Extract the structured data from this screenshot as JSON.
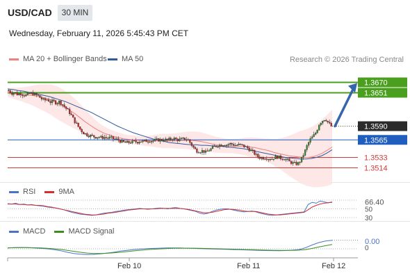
{
  "header": {
    "symbol": "USD/CAD",
    "timeframe": "30 MIN",
    "datetime": "Wednesday, February 11, 2026 5:45:43 PM CET"
  },
  "legend": {
    "ma20_label": "MA 20 + Bollinger Bands",
    "ma50_label": "MA 50",
    "copyright": "Research © 2026 Trading Central",
    "colors": {
      "ma20": "#f08080",
      "ma50": "#2e5a9e",
      "band_fill": "#fde3e3"
    }
  },
  "chart_data": [
    {
      "type": "candlestick",
      "title": "",
      "ylim": [
        1.3493,
        1.3696
      ],
      "x_ticks": [
        "Feb 10",
        "Feb 11",
        "Feb 12"
      ],
      "current_price": "1.3590",
      "levels": [
        {
          "value": 1.367,
          "label": "1.3670",
          "kind": "resistance",
          "color": "#4aa01e"
        },
        {
          "value": 1.3651,
          "label": "1.3651",
          "kind": "resistance",
          "color": "#4aa01e"
        },
        {
          "value": 1.3565,
          "label": "1.3565",
          "kind": "pivot",
          "color": "#1f5dbf"
        },
        {
          "value": 1.3533,
          "label": "1.3533",
          "kind": "support",
          "color": "#d23a3a"
        },
        {
          "value": 1.3514,
          "label": "1.3514",
          "kind": "support",
          "color": "#d23a3a"
        }
      ],
      "arrow": {
        "from": 1.359,
        "to": 1.367,
        "color": "#3566ad"
      },
      "close_path": [
        1.3655,
        1.365,
        1.3652,
        1.3648,
        1.365,
        1.3647,
        1.3646,
        1.3649,
        1.365,
        1.3647,
        1.3645,
        1.364,
        1.3637,
        1.3639,
        1.3634,
        1.3636,
        1.3632,
        1.3635,
        1.363,
        1.3624,
        1.3618,
        1.361,
        1.36,
        1.3592,
        1.3584,
        1.3578,
        1.3575,
        1.3573,
        1.3572,
        1.357,
        1.3571,
        1.3569,
        1.357,
        1.3568,
        1.3569,
        1.3567,
        1.3566,
        1.3564,
        1.3561,
        1.356,
        1.356,
        1.3561,
        1.3562,
        1.3561,
        1.3563,
        1.3562,
        1.3563,
        1.3564,
        1.3563,
        1.3564,
        1.3565,
        1.3565,
        1.3566,
        1.3564,
        1.3566,
        1.3568,
        1.3566,
        1.3565,
        1.3566,
        1.3567,
        1.3566,
        1.3558,
        1.355,
        1.3545,
        1.3544,
        1.3545,
        1.3542,
        1.3546,
        1.3549,
        1.3553,
        1.3555,
        1.3556,
        1.3557,
        1.3556,
        1.3558,
        1.3557,
        1.3555,
        1.3556,
        1.3555,
        1.3553,
        1.355,
        1.3546,
        1.3542,
        1.3536,
        1.3533,
        1.3532,
        1.3533,
        1.3531,
        1.353,
        1.3533,
        1.3534,
        1.3532,
        1.3531,
        1.3529,
        1.3525,
        1.3523,
        1.3521,
        1.3522,
        1.353,
        1.3542,
        1.3556,
        1.3566,
        1.3572,
        1.358,
        1.3595,
        1.36,
        1.3604,
        1.3596,
        1.359
      ],
      "ma20": [
        1.3652,
        1.365,
        1.3649,
        1.3648,
        1.3647,
        1.3646,
        1.3645,
        1.3643,
        1.3641,
        1.3638,
        1.3634,
        1.3629,
        1.3624,
        1.3618,
        1.3612,
        1.3605,
        1.3598,
        1.3592,
        1.3586,
        1.3581,
        1.3577,
        1.3574,
        1.3571,
        1.3569,
        1.3567,
        1.3566,
        1.3565,
        1.3564,
        1.3563,
        1.3563,
        1.3563,
        1.3563,
        1.3563,
        1.3563,
        1.3563,
        1.3563,
        1.3564,
        1.3564,
        1.3564,
        1.3563,
        1.3562,
        1.356,
        1.3558,
        1.3556,
        1.3555,
        1.3554,
        1.3554,
        1.3553,
        1.3553,
        1.3553,
        1.3552,
        1.3551,
        1.3549,
        1.3547,
        1.3545,
        1.3542,
        1.354,
        1.3538,
        1.3536,
        1.3535,
        1.3534,
        1.3533,
        1.3533,
        1.3534,
        1.3537,
        1.3541,
        1.3546,
        1.3552
      ],
      "ma50": [
        1.3658,
        1.3657,
        1.3655,
        1.3654,
        1.3652,
        1.365,
        1.3648,
        1.3646,
        1.3644,
        1.3641,
        1.3638,
        1.3635,
        1.3631,
        1.3627,
        1.3623,
        1.3619,
        1.3615,
        1.361,
        1.3605,
        1.36,
        1.3595,
        1.359,
        1.3586,
        1.3582,
        1.3578,
        1.3575,
        1.3572,
        1.3569,
        1.3566,
        1.3564,
        1.3562,
        1.356,
        1.3559,
        1.3558,
        1.3557,
        1.3556,
        1.3556,
        1.3555,
        1.3555,
        1.3554,
        1.3554,
        1.3553,
        1.3552,
        1.3551,
        1.355,
        1.3549,
        1.3547,
        1.3545,
        1.3543,
        1.3541,
        1.3539,
        1.3537,
        1.3535,
        1.3533,
        1.3532,
        1.3531,
        1.353,
        1.353,
        1.3531,
        1.3533,
        1.3536,
        1.3541,
        1.3547
      ],
      "band_width": [
        0.0008,
        0.001,
        0.0012,
        0.0015,
        0.0018,
        0.0022,
        0.0025,
        0.0028,
        0.003,
        0.003,
        0.0029,
        0.0027,
        0.0024,
        0.002,
        0.0016,
        0.0013,
        0.0011,
        0.001,
        0.0009,
        0.0008,
        0.0008,
        0.0008,
        0.0009,
        0.001,
        0.0012,
        0.0013,
        0.0013,
        0.0014,
        0.0015,
        0.0016,
        0.0017,
        0.0017,
        0.0016,
        0.0015,
        0.0014,
        0.0013,
        0.0013,
        0.0014,
        0.0016,
        0.0018,
        0.0019,
        0.002,
        0.0022,
        0.0025,
        0.003,
        0.0036,
        0.0042,
        0.0048,
        0.0052,
        0.0056,
        0.006,
        0.0064,
        0.0068
      ]
    },
    {
      "type": "line",
      "legend": [
        "RSI",
        "9MA"
      ],
      "colors": [
        "#4a72c9",
        "#d32f2f"
      ],
      "ylim": [
        30,
        70
      ],
      "tick_labels": [
        "66.40",
        "50",
        "30"
      ],
      "rsi": [
        62,
        61,
        63,
        60,
        61,
        59,
        60,
        58,
        57,
        56,
        54,
        53,
        52,
        50,
        48,
        45,
        42,
        40,
        38,
        37,
        36,
        35,
        36,
        38,
        40,
        41,
        42,
        44,
        45,
        47,
        48,
        49,
        50,
        51,
        50,
        49,
        50,
        51,
        52,
        51,
        50,
        52,
        53,
        51,
        50,
        48,
        46,
        44,
        40,
        38,
        40,
        44,
        47,
        49,
        50,
        50,
        48,
        46,
        44,
        43,
        44,
        45,
        43,
        40,
        38,
        36,
        35,
        36,
        37,
        38,
        39,
        40,
        41,
        42,
        43,
        60,
        65,
        63,
        68,
        66,
        64,
        66
      ],
      "rsi_ma": [
        61,
        61,
        61,
        60,
        60,
        59,
        59,
        58,
        58,
        57,
        55,
        54,
        52,
        50,
        48,
        46,
        44,
        42,
        40,
        38,
        37,
        36,
        36,
        37,
        38,
        40,
        41,
        42,
        44,
        45,
        47,
        48,
        49,
        50,
        50,
        50,
        50,
        50,
        51,
        51,
        51,
        51,
        51,
        51,
        50,
        49,
        47,
        45,
        43,
        41,
        41,
        42,
        44,
        46,
        48,
        49,
        49,
        48,
        47,
        45,
        44,
        44,
        44,
        42,
        40,
        38,
        37,
        36,
        36,
        37,
        38,
        39,
        40,
        41,
        42,
        48,
        54,
        58,
        61,
        63,
        64,
        65
      ]
    },
    {
      "type": "line",
      "legend": [
        "MACD",
        "MACD Signal"
      ],
      "colors": [
        "#4a72c9",
        "#3c8f1e"
      ],
      "tick_labels": [
        "0.00",
        "0"
      ],
      "macd": [
        0.2,
        0.3,
        0.35,
        0.3,
        0.2,
        0.1,
        0.0,
        -0.2,
        -0.5,
        -0.9,
        -1.2,
        -1.4,
        -1.5,
        -1.45,
        -1.3,
        -1.1,
        -0.9,
        -0.6,
        -0.4,
        -0.2,
        -0.05,
        0.05,
        0.1,
        0.15,
        0.2,
        0.22,
        0.2,
        0.15,
        0.1,
        0.05,
        0.0,
        -0.05,
        -0.1,
        -0.15,
        -0.2,
        -0.25,
        -0.3,
        -0.35,
        -0.4,
        -0.45,
        -0.48,
        -0.5,
        -0.45,
        -0.35,
        -0.2,
        0.3,
        1.0,
        1.6,
        2.0,
        2.2
      ],
      "signal": [
        0.25,
        0.28,
        0.3,
        0.3,
        0.26,
        0.2,
        0.12,
        0.0,
        -0.15,
        -0.4,
        -0.65,
        -0.9,
        -1.1,
        -1.2,
        -1.22,
        -1.15,
        -1.05,
        -0.9,
        -0.72,
        -0.55,
        -0.38,
        -0.25,
        -0.12,
        -0.02,
        0.06,
        0.12,
        0.15,
        0.16,
        0.15,
        0.12,
        0.08,
        0.04,
        0.0,
        -0.05,
        -0.1,
        -0.15,
        -0.2,
        -0.25,
        -0.3,
        -0.34,
        -0.38,
        -0.41,
        -0.42,
        -0.4,
        -0.35,
        -0.2,
        0.1,
        0.45,
        0.8,
        1.1
      ]
    }
  ]
}
